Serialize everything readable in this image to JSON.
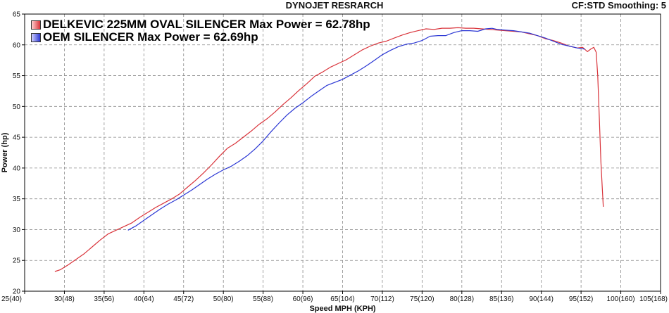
{
  "header": {
    "title": "DYNOJET RESRARCH",
    "right_info": "CF:STD Smoothing: 5"
  },
  "colors": {
    "series_1": "#d9333a",
    "series_2": "#2b37d4",
    "grid": "#8a8a8a",
    "axis": "#000000"
  },
  "chart_data": {
    "type": "line",
    "xlabel": "Speed MPH (KPH)",
    "ylabel": "Power (hp)",
    "xlim": [
      25,
      105
    ],
    "ylim": [
      20,
      65
    ],
    "grid": true,
    "legend_position": "top-left",
    "x_ticks": [
      {
        "value": 25,
        "label": "25(40)"
      },
      {
        "value": 30,
        "label": "30(48)"
      },
      {
        "value": 35,
        "label": "35(56)"
      },
      {
        "value": 40,
        "label": "40(64)"
      },
      {
        "value": 45,
        "label": "45(72)"
      },
      {
        "value": 50,
        "label": "50(80)"
      },
      {
        "value": 55,
        "label": "55(88)"
      },
      {
        "value": 60,
        "label": "60(96)"
      },
      {
        "value": 65,
        "label": "65(104)"
      },
      {
        "value": 70,
        "label": "70(112)"
      },
      {
        "value": 75,
        "label": "75(120)"
      },
      {
        "value": 80,
        "label": "80(128)"
      },
      {
        "value": 85,
        "label": "85(136)"
      },
      {
        "value": 90,
        "label": "90(144)"
      },
      {
        "value": 95,
        "label": "95(152)"
      },
      {
        "value": 100,
        "label": "100(160)"
      },
      {
        "value": 105,
        "label": "105(168)"
      }
    ],
    "y_ticks": [
      20,
      25,
      30,
      35,
      40,
      45,
      50,
      55,
      60,
      65
    ],
    "series": [
      {
        "name": "DELKEVIC 225MM OVAL SILENCER Max Power = 62.78hp",
        "color": "#d9333a",
        "points": [
          [
            28.8,
            23.2
          ],
          [
            29.5,
            23.5
          ],
          [
            30.5,
            24.3
          ],
          [
            31.5,
            25.2
          ],
          [
            32.5,
            26.1
          ],
          [
            33.5,
            27.2
          ],
          [
            34.5,
            28.3
          ],
          [
            35.5,
            29.3
          ],
          [
            36.5,
            29.9
          ],
          [
            37.5,
            30.5
          ],
          [
            38.5,
            31.1
          ],
          [
            39.5,
            32.0
          ],
          [
            40.5,
            32.8
          ],
          [
            41.5,
            33.6
          ],
          [
            42.5,
            34.3
          ],
          [
            43.5,
            35.0
          ],
          [
            44.5,
            35.8
          ],
          [
            45.5,
            36.9
          ],
          [
            46.5,
            38.0
          ],
          [
            47.5,
            39.2
          ],
          [
            48.5,
            40.5
          ],
          [
            49.5,
            41.9
          ],
          [
            50.5,
            43.2
          ],
          [
            51.5,
            44.0
          ],
          [
            52.5,
            45.0
          ],
          [
            53.5,
            46.0
          ],
          [
            54.5,
            47.1
          ],
          [
            55.5,
            48.0
          ],
          [
            56.5,
            49.1
          ],
          [
            57.5,
            50.3
          ],
          [
            58.5,
            51.4
          ],
          [
            59.5,
            52.6
          ],
          [
            60.5,
            53.7
          ],
          [
            61.5,
            54.9
          ],
          [
            62.5,
            55.6
          ],
          [
            63.5,
            56.4
          ],
          [
            64.5,
            57.0
          ],
          [
            65.5,
            57.6
          ],
          [
            66.5,
            58.4
          ],
          [
            67.5,
            59.2
          ],
          [
            68.5,
            59.8
          ],
          [
            69.5,
            60.3
          ],
          [
            70.5,
            60.6
          ],
          [
            71.5,
            61.1
          ],
          [
            72.5,
            61.6
          ],
          [
            73.5,
            62.0
          ],
          [
            74.5,
            62.3
          ],
          [
            75.5,
            62.6
          ],
          [
            76.5,
            62.5
          ],
          [
            77.5,
            62.7
          ],
          [
            78.5,
            62.7
          ],
          [
            79.5,
            62.78
          ],
          [
            80.5,
            62.7
          ],
          [
            81.5,
            62.7
          ],
          [
            82.5,
            62.6
          ],
          [
            83.5,
            62.5
          ],
          [
            84.5,
            62.4
          ],
          [
            85.5,
            62.3
          ],
          [
            86.5,
            62.2
          ],
          [
            87.5,
            62.1
          ],
          [
            88.5,
            61.8
          ],
          [
            89.5,
            61.5
          ],
          [
            90.5,
            61.0
          ],
          [
            91.5,
            60.7
          ],
          [
            92.5,
            60.3
          ],
          [
            93.5,
            59.8
          ],
          [
            94.5,
            59.5
          ],
          [
            95.2,
            59.6
          ],
          [
            95.8,
            58.9
          ],
          [
            96.2,
            59.3
          ],
          [
            96.6,
            59.6
          ],
          [
            96.9,
            58.8
          ],
          [
            97.1,
            55.0
          ],
          [
            97.3,
            48.0
          ],
          [
            97.5,
            41.0
          ],
          [
            97.7,
            36.0
          ],
          [
            97.8,
            33.7
          ]
        ]
      },
      {
        "name": "OEM SILENCER Max Power = 62.69hp",
        "color": "#2b37d4",
        "points": [
          [
            38.0,
            29.9
          ],
          [
            39.0,
            30.6
          ],
          [
            40.0,
            31.5
          ],
          [
            41.0,
            32.4
          ],
          [
            42.0,
            33.3
          ],
          [
            43.0,
            34.1
          ],
          [
            44.0,
            34.8
          ],
          [
            45.0,
            35.6
          ],
          [
            46.0,
            36.4
          ],
          [
            47.0,
            37.3
          ],
          [
            48.0,
            38.2
          ],
          [
            49.0,
            39.0
          ],
          [
            50.0,
            39.7
          ],
          [
            51.0,
            40.3
          ],
          [
            52.0,
            41.1
          ],
          [
            53.0,
            42.0
          ],
          [
            54.0,
            43.1
          ],
          [
            55.0,
            44.4
          ],
          [
            56.0,
            45.9
          ],
          [
            57.0,
            47.3
          ],
          [
            58.0,
            48.6
          ],
          [
            59.0,
            49.7
          ],
          [
            60.0,
            50.6
          ],
          [
            61.0,
            51.6
          ],
          [
            62.0,
            52.5
          ],
          [
            63.0,
            53.4
          ],
          [
            64.0,
            53.9
          ],
          [
            65.0,
            54.4
          ],
          [
            66.0,
            55.1
          ],
          [
            67.0,
            55.8
          ],
          [
            68.0,
            56.6
          ],
          [
            69.0,
            57.5
          ],
          [
            70.0,
            58.4
          ],
          [
            71.0,
            59.1
          ],
          [
            72.0,
            59.7
          ],
          [
            73.0,
            60.1
          ],
          [
            74.0,
            60.3
          ],
          [
            75.0,
            60.7
          ],
          [
            76.0,
            61.4
          ],
          [
            77.0,
            61.5
          ],
          [
            78.0,
            61.5
          ],
          [
            79.0,
            62.0
          ],
          [
            80.0,
            62.3
          ],
          [
            81.0,
            62.3
          ],
          [
            82.0,
            62.2
          ],
          [
            83.0,
            62.6
          ],
          [
            83.8,
            62.69
          ],
          [
            84.5,
            62.5
          ],
          [
            85.5,
            62.4
          ],
          [
            86.5,
            62.3
          ],
          [
            87.5,
            62.1
          ],
          [
            88.5,
            61.9
          ],
          [
            89.5,
            61.5
          ],
          [
            90.5,
            61.1
          ],
          [
            91.5,
            60.6
          ],
          [
            92.5,
            60.1
          ],
          [
            93.5,
            59.8
          ],
          [
            94.5,
            59.5
          ],
          [
            95.5,
            59.3
          ]
        ]
      }
    ]
  }
}
